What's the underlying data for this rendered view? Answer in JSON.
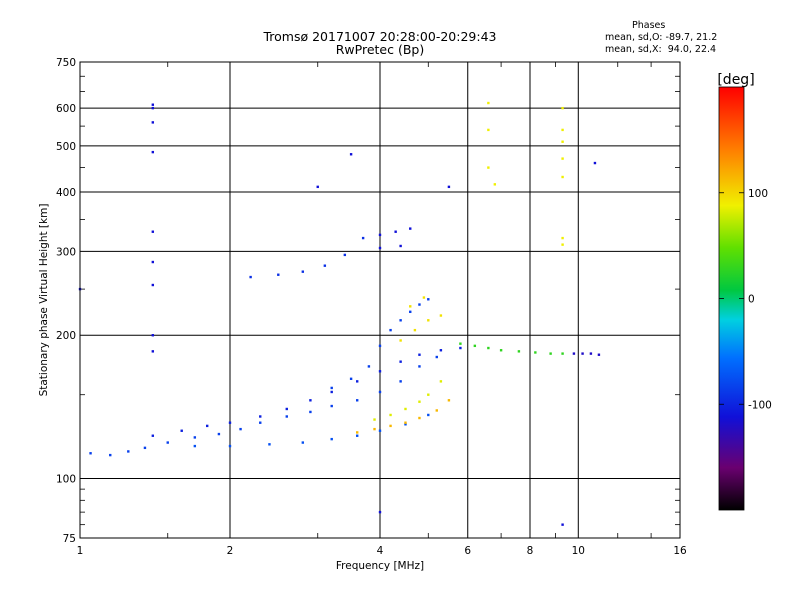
{
  "header": {
    "title_line1": "Tromsø 20171007 20:28:00-20:29:43",
    "title_line2": "RwPretec (Bp)",
    "phases_title": "Phases",
    "phases_o": "mean, sd,O: -89.7, 21.2",
    "phases_x": "mean, sd,X:  94.0, 22.4"
  },
  "colorbar": {
    "label": "[deg]",
    "ticks": [
      "100",
      "0",
      "-100"
    ]
  },
  "chart_data": {
    "type": "scatter",
    "title": "Tromsø 20171007 20:28:00-20:29:43",
    "subtitle": "RwPretec (Bp)",
    "xlabel": "Frequency [MHz]",
    "ylabel": "Stationary phase Virtual Height [km]",
    "x_scale": "log",
    "y_scale": "log",
    "xlim": [
      1,
      16
    ],
    "ylim": [
      75,
      750
    ],
    "x_ticks": [
      "1",
      "2",
      "4",
      "6",
      "8",
      "10",
      "16"
    ],
    "y_ticks": [
      "75",
      "100",
      "200",
      "300",
      "400",
      "500",
      "600",
      "750"
    ],
    "grid": true,
    "color_scale": "phase [deg], approx -180 (black/purple) to +180 (red)",
    "traces": [
      {
        "name": "",
        "phase": -95,
        "points": [
          [
            1.05,
            113
          ],
          [
            1.15,
            112
          ],
          [
            1.25,
            114
          ],
          [
            1.35,
            116
          ],
          [
            1.5,
            119
          ],
          [
            1.7,
            122
          ],
          [
            1.9,
            124
          ],
          [
            2.1,
            127
          ],
          [
            2.3,
            131
          ],
          [
            2.6,
            135
          ],
          [
            2.9,
            138
          ],
          [
            3.2,
            142
          ],
          [
            3.6,
            146
          ],
          [
            4.0,
            152
          ],
          [
            4.4,
            160
          ],
          [
            4.8,
            172
          ],
          [
            5.2,
            180
          ]
        ]
      },
      {
        "name": "",
        "phase": -105,
        "points": [
          [
            1.4,
            123
          ],
          [
            1.6,
            126
          ],
          [
            1.8,
            129
          ],
          [
            2.0,
            131
          ],
          [
            2.3,
            135
          ],
          [
            2.6,
            140
          ],
          [
            2.9,
            146
          ],
          [
            3.2,
            152
          ],
          [
            3.6,
            160
          ],
          [
            4.0,
            168
          ],
          [
            4.4,
            176
          ],
          [
            4.8,
            182
          ],
          [
            5.3,
            186
          ],
          [
            5.8,
            188
          ]
        ]
      },
      {
        "name": "",
        "phase": -90,
        "points": [
          [
            1.7,
            117
          ],
          [
            2.0,
            117
          ],
          [
            2.4,
            118
          ],
          [
            2.8,
            119
          ],
          [
            3.2,
            121
          ],
          [
            3.6,
            123
          ],
          [
            4.0,
            126
          ],
          [
            4.5,
            130
          ],
          [
            5.0,
            136
          ]
        ]
      },
      {
        "name": "",
        "phase": -100,
        "points": [
          [
            2.2,
            265
          ],
          [
            2.5,
            268
          ],
          [
            2.8,
            272
          ],
          [
            3.1,
            280
          ],
          [
            3.4,
            295
          ],
          [
            3.7,
            320
          ]
        ]
      },
      {
        "name": "",
        "phase": -95,
        "points": [
          [
            3.2,
            155
          ],
          [
            3.5,
            162
          ],
          [
            3.8,
            172
          ],
          [
            4.0,
            190
          ],
          [
            4.2,
            205
          ],
          [
            4.4,
            215
          ],
          [
            4.6,
            224
          ],
          [
            4.8,
            232
          ],
          [
            5.0,
            238
          ]
        ]
      },
      {
        "name": "",
        "phase": -110,
        "points": [
          [
            4.0,
            325
          ],
          [
            4.3,
            330
          ],
          [
            4.6,
            335
          ],
          [
            4.0,
            305
          ],
          [
            4.4,
            308
          ]
        ]
      },
      {
        "name": "",
        "phase": 75,
        "points": [
          [
            3.9,
            133
          ],
          [
            4.2,
            136
          ],
          [
            4.5,
            140
          ],
          [
            4.8,
            145
          ],
          [
            5.0,
            150
          ],
          [
            5.3,
            160
          ]
        ]
      },
      {
        "name": "",
        "phase": 100,
        "points": [
          [
            3.6,
            125
          ],
          [
            3.9,
            127
          ],
          [
            4.2,
            129
          ],
          [
            4.5,
            131
          ],
          [
            4.8,
            134
          ],
          [
            5.2,
            139
          ],
          [
            5.5,
            146
          ]
        ]
      },
      {
        "name": "",
        "phase": 85,
        "points": [
          [
            4.4,
            195
          ],
          [
            4.7,
            205
          ],
          [
            5.0,
            215
          ],
          [
            5.3,
            220
          ],
          [
            4.6,
            230
          ],
          [
            4.9,
            240
          ]
        ]
      },
      {
        "name": "",
        "phase": 20,
        "points": [
          [
            5.8,
            192
          ],
          [
            6.2,
            190
          ],
          [
            6.6,
            188
          ],
          [
            7.0,
            186
          ],
          [
            7.6,
            185
          ],
          [
            8.2,
            184
          ],
          [
            8.8,
            183
          ],
          [
            9.3,
            183
          ]
        ]
      },
      {
        "name": "",
        "phase": -115,
        "points": [
          [
            9.8,
            183
          ],
          [
            10.2,
            183
          ],
          [
            10.6,
            183
          ],
          [
            11.0,
            182
          ]
        ]
      },
      {
        "name": "",
        "phase": 80,
        "points": [
          [
            6.6,
            615
          ],
          [
            6.6,
            540
          ],
          [
            6.6,
            450
          ],
          [
            6.8,
            415
          ],
          [
            9.3,
            600
          ],
          [
            9.3,
            540
          ],
          [
            9.3,
            510
          ],
          [
            9.3,
            470
          ],
          [
            9.3,
            430
          ],
          [
            9.3,
            320
          ],
          [
            9.3,
            310
          ]
        ]
      },
      {
        "name": "",
        "phase": -110,
        "points": [
          [
            1.4,
            610
          ],
          [
            1.4,
            600
          ],
          [
            1.4,
            560
          ],
          [
            1.4,
            485
          ],
          [
            1.4,
            330
          ],
          [
            1.4,
            285
          ],
          [
            1.4,
            255
          ],
          [
            1.4,
            200
          ],
          [
            1.4,
            185
          ],
          [
            3.0,
            410
          ],
          [
            3.5,
            480
          ],
          [
            5.5,
            410
          ],
          [
            10.8,
            460
          ],
          [
            1.0,
            250
          ],
          [
            4.0,
            85
          ],
          [
            9.3,
            80
          ]
        ]
      }
    ]
  }
}
